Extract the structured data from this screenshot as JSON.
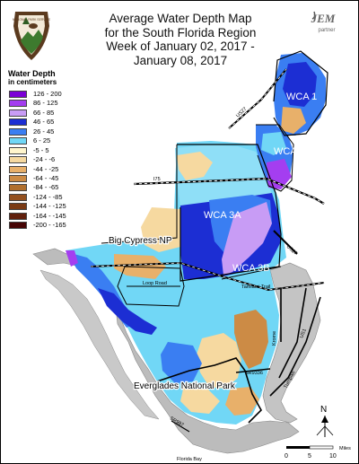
{
  "title": {
    "line1": "Average Water Depth Map",
    "line2": "for the South Florida Region",
    "line3": "Week of January 02, 2017 -",
    "line4": "January 08, 2017"
  },
  "logos": {
    "nps_text": "NATIONAL PARK SERVICE",
    "jem_text": "JEM",
    "jem_sub": "partner"
  },
  "legend": {
    "title": "Water Depth",
    "subtitle": "in centimeters",
    "items": [
      {
        "label": "126 - 200",
        "color": "#7b00d6"
      },
      {
        "label": "86 - 125",
        "color": "#a43ef0"
      },
      {
        "label": "66 - 85",
        "color": "#c89cf5"
      },
      {
        "label": "46 - 65",
        "color": "#1c2ed3"
      },
      {
        "label": "26 - 45",
        "color": "#3a7ef2"
      },
      {
        "label": "6 - 25",
        "color": "#71d7f6"
      },
      {
        "label": "-5 - 5",
        "color": "#fff5cc"
      },
      {
        "label": "-24 - -6",
        "color": "#f6d9a0"
      },
      {
        "label": "-44 - -25",
        "color": "#e8b06a"
      },
      {
        "label": "-64 - -45",
        "color": "#cc8b45"
      },
      {
        "label": "-84 - -65",
        "color": "#b06f2e"
      },
      {
        "label": "-124 - -85",
        "color": "#93501f"
      },
      {
        "label": "-144 - -125",
        "color": "#7a3a14"
      },
      {
        "label": "-164 - -145",
        "color": "#601f0c"
      },
      {
        "label": "-200 - -165",
        "color": "#460404"
      }
    ]
  },
  "areas": {
    "wca1": "WCA 1",
    "wca2": "WCA 2",
    "wca3a": "WCA 3A",
    "wca3b": "WCA 3B",
    "big_cypress": "Big Cypress NP",
    "everglades": "Everglades National Park"
  },
  "roads": {
    "i75": "I75",
    "us27_north": "US27",
    "us27": "US27",
    "loop_road": "Loop Road",
    "tamiami": "Tamiami Trail",
    "krome": "Krome",
    "us1": "US1",
    "turnpike": "Turnpike",
    "sr9336": "SR9336",
    "sr997": "SR997",
    "florida_bay": "Florida Bay"
  },
  "scale": {
    "north": "N",
    "t0": "0",
    "t5": "5",
    "t10": "10",
    "unit": "Miles"
  }
}
